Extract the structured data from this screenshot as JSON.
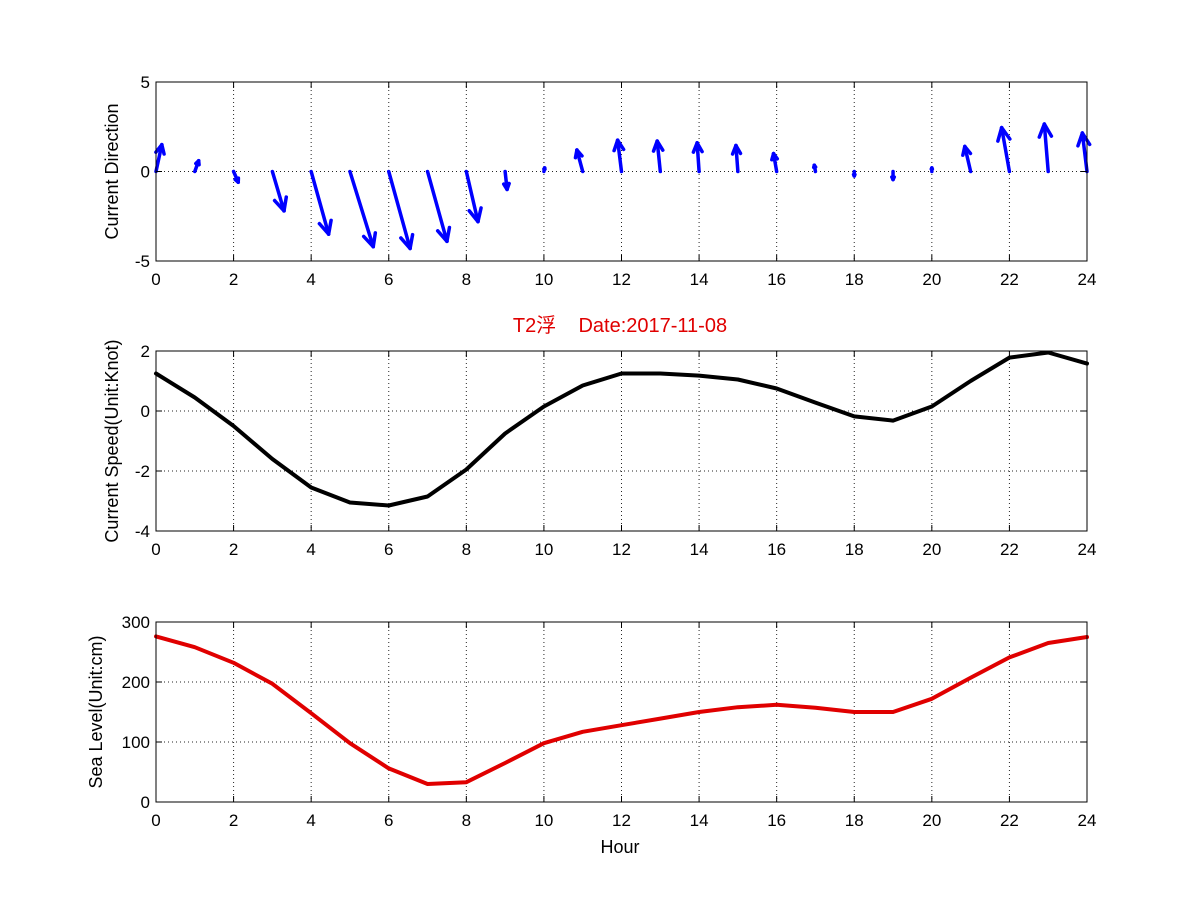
{
  "chart_data": [
    {
      "type": "quiver",
      "ylabel": "Current Direction",
      "xlabel": "",
      "xlim": [
        0,
        24
      ],
      "ylim": [
        -5,
        5
      ],
      "xticks": [
        0,
        2,
        4,
        6,
        8,
        10,
        12,
        14,
        16,
        18,
        20,
        22,
        24
      ],
      "yticks": [
        -5,
        0,
        5
      ],
      "grid": true,
      "color": "#0000ff",
      "vectors": [
        {
          "x": 0,
          "u": 0.15,
          "v": 1.5
        },
        {
          "x": 1,
          "u": 0.1,
          "v": 0.6
        },
        {
          "x": 2,
          "u": 0.12,
          "v": -0.6
        },
        {
          "x": 3,
          "u": 0.3,
          "v": -2.2
        },
        {
          "x": 4,
          "u": 0.45,
          "v": -3.5
        },
        {
          "x": 5,
          "u": 0.6,
          "v": -4.2
        },
        {
          "x": 6,
          "u": 0.55,
          "v": -4.3
        },
        {
          "x": 7,
          "u": 0.5,
          "v": -3.9
        },
        {
          "x": 8,
          "u": 0.3,
          "v": -2.8
        },
        {
          "x": 9,
          "u": 0.05,
          "v": -1.0
        },
        {
          "x": 10,
          "u": 0.02,
          "v": 0.2
        },
        {
          "x": 11,
          "u": -0.15,
          "v": 1.2
        },
        {
          "x": 12,
          "u": -0.1,
          "v": 1.75
        },
        {
          "x": 13,
          "u": -0.08,
          "v": 1.7
        },
        {
          "x": 14,
          "u": -0.05,
          "v": 1.6
        },
        {
          "x": 15,
          "u": -0.05,
          "v": 1.45
        },
        {
          "x": 16,
          "u": -0.08,
          "v": 1.0
        },
        {
          "x": 17,
          "u": -0.03,
          "v": 0.35
        },
        {
          "x": 18,
          "u": 0.0,
          "v": -0.25
        },
        {
          "x": 19,
          "u": 0.0,
          "v": -0.45
        },
        {
          "x": 20,
          "u": 0.0,
          "v": 0.2
        },
        {
          "x": 21,
          "u": -0.15,
          "v": 1.4
        },
        {
          "x": 22,
          "u": -0.2,
          "v": 2.45
        },
        {
          "x": 23,
          "u": -0.1,
          "v": 2.65
        },
        {
          "x": 24,
          "u": -0.12,
          "v": 2.15
        }
      ]
    },
    {
      "type": "line",
      "title": "T2浮    Date:2017-11-08",
      "title_color": "#e00000",
      "ylabel": "Current Speed(Unit:Knot)",
      "xlabel": "",
      "xlim": [
        0,
        24
      ],
      "ylim": [
        -4,
        2
      ],
      "xticks": [
        0,
        2,
        4,
        6,
        8,
        10,
        12,
        14,
        16,
        18,
        20,
        22,
        24
      ],
      "yticks": [
        -4,
        -2,
        0,
        2
      ],
      "grid": true,
      "color": "#000000",
      "x": [
        0,
        1,
        2,
        3,
        4,
        5,
        6,
        7,
        8,
        9,
        10,
        11,
        12,
        13,
        14,
        15,
        16,
        17,
        18,
        19,
        20,
        21,
        22,
        23,
        24
      ],
      "y": [
        1.25,
        0.45,
        -0.5,
        -1.6,
        -2.55,
        -3.05,
        -3.15,
        -2.85,
        -1.95,
        -0.75,
        0.15,
        0.85,
        1.25,
        1.25,
        1.18,
        1.05,
        0.75,
        0.28,
        -0.18,
        -0.32,
        0.15,
        1.0,
        1.78,
        1.95,
        1.58
      ]
    },
    {
      "type": "line",
      "ylabel": "Sea Level(Unit:cm)",
      "xlabel": "Hour",
      "xlim": [
        0,
        24
      ],
      "ylim": [
        0,
        300
      ],
      "xticks": [
        0,
        2,
        4,
        6,
        8,
        10,
        12,
        14,
        16,
        18,
        20,
        22,
        24
      ],
      "yticks": [
        0,
        100,
        200,
        300
      ],
      "grid": true,
      "color": "#e00000",
      "x": [
        0,
        1,
        2,
        3,
        4,
        5,
        6,
        7,
        8,
        9,
        10,
        11,
        12,
        13,
        14,
        15,
        16,
        17,
        18,
        19,
        20,
        21,
        22,
        23,
        24
      ],
      "y": [
        276,
        258,
        232,
        197,
        148,
        98,
        56,
        30,
        33,
        65,
        98,
        117,
        128,
        139,
        150,
        158,
        162,
        157,
        150,
        150,
        172,
        207,
        241,
        265,
        275
      ]
    }
  ]
}
